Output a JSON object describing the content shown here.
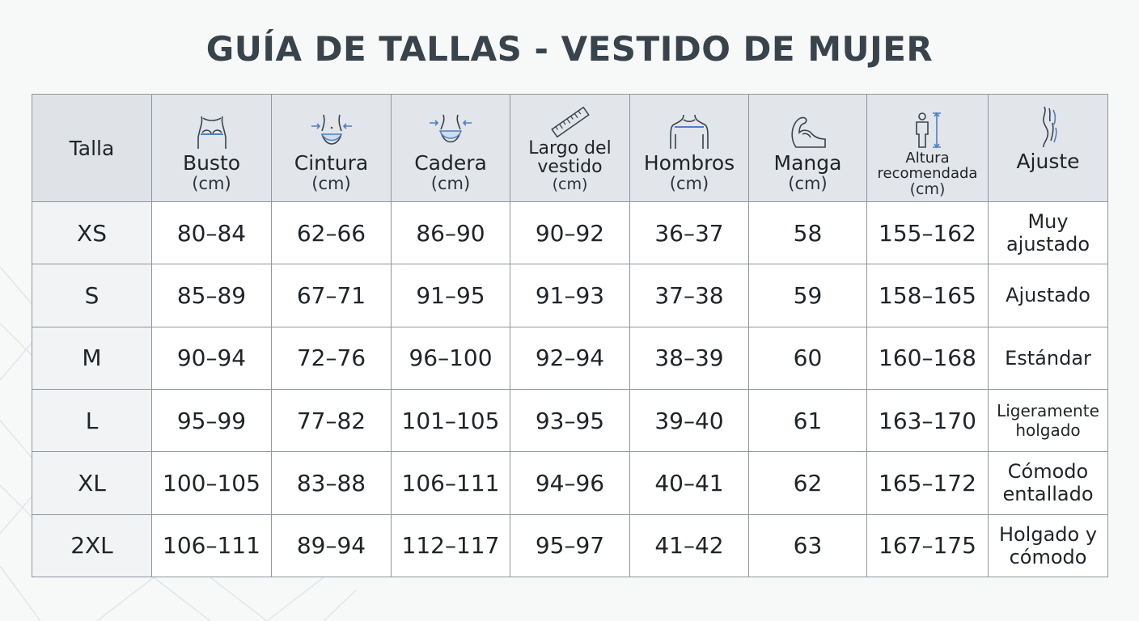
{
  "title": "GUÍA DE TALLAS - VESTIDO DE MUJER",
  "colors": {
    "title": "#39434b",
    "header_bg": "#e2e6ea",
    "border": "#8f979e",
    "icon_accent": "#4f7fc0"
  },
  "header": {
    "talla": "Talla",
    "columns": [
      {
        "label": "Busto",
        "unit": "(cm)",
        "icon": "bust-icon"
      },
      {
        "label": "Cintura",
        "unit": "(cm)",
        "icon": "waist-icon"
      },
      {
        "label": "Cadera",
        "unit": "(cm)",
        "icon": "hip-icon"
      },
      {
        "label": "Largo del",
        "label2": "vestido",
        "unit": "(cm)",
        "icon": "ruler-icon"
      },
      {
        "label": "Hombros",
        "unit": "(cm)",
        "icon": "shoulders-icon"
      },
      {
        "label": "Manga",
        "unit": "(cm)",
        "icon": "arm-icon"
      },
      {
        "label": "Altura",
        "label2": "recomendada",
        "unit": "(cm)",
        "icon": "height-icon"
      },
      {
        "label": "Ajuste",
        "icon": "silhouette-icon"
      }
    ]
  },
  "rows": [
    {
      "size": "XS",
      "busto": "80–84",
      "cintura": "62–66",
      "cadera": "86–90",
      "largo": "90–92",
      "hombros": "36–37",
      "manga": "58",
      "altura": "155–162",
      "ajuste": [
        "Muy",
        "ajustado"
      ]
    },
    {
      "size": "S",
      "busto": "85–89",
      "cintura": "67–71",
      "cadera": "91–95",
      "largo": "91–93",
      "hombros": "37–38",
      "manga": "59",
      "altura": "158–165",
      "ajuste": [
        "Ajustado"
      ]
    },
    {
      "size": "M",
      "busto": "90–94",
      "cintura": "72–76",
      "cadera": "96–100",
      "largo": "92–94",
      "hombros": "38–39",
      "manga": "60",
      "altura": "160–168",
      "ajuste": [
        "Estándar"
      ]
    },
    {
      "size": "L",
      "busto": "95–99",
      "cintura": "77–82",
      "cadera": "101–105",
      "largo": "93–95",
      "hombros": "39–40",
      "manga": "61",
      "altura": "163–170",
      "ajuste": [
        "Ligeramente",
        "holgado"
      ]
    },
    {
      "size": "XL",
      "busto": "100–105",
      "cintura": "83–88",
      "cadera": "106–111",
      "largo": "94–96",
      "hombros": "40–41",
      "manga": "62",
      "altura": "165–172",
      "ajuste": [
        "Cómodo",
        "entallado"
      ]
    },
    {
      "size": "2XL",
      "busto": "106–111",
      "cintura": "89–94",
      "cadera": "112–117",
      "largo": "95–97",
      "hombros": "41–42",
      "manga": "63",
      "altura": "167–175",
      "ajuste": [
        "Holgado y",
        "cómodo"
      ]
    }
  ]
}
